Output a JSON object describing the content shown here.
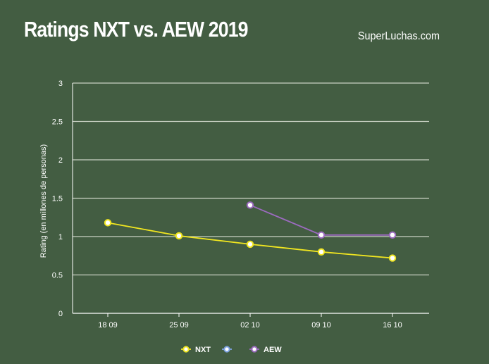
{
  "header": {
    "title": "Ratings NXT vs. AEW 2019",
    "source": "SuperLuchas.com"
  },
  "chart_data": {
    "type": "line",
    "title": "Ratings NXT vs. AEW 2019",
    "xlabel": "",
    "ylabel": "Rating (en millones de personas)",
    "categories": [
      "18 09",
      "25 09",
      "02 10",
      "09 10",
      "16 10"
    ],
    "ylim": [
      0,
      3
    ],
    "yticks": [
      "0",
      "0.5",
      "1",
      "1.5",
      "2",
      "2.5",
      "3"
    ],
    "grid": true,
    "legend_position": "bottom",
    "series": [
      {
        "name": "NXT",
        "color": "#f1e620",
        "values": [
          1.18,
          1.01,
          0.9,
          0.8,
          0.72
        ]
      },
      {
        "name": "",
        "color": "#7ea3e2",
        "values": [
          null,
          null,
          null,
          null,
          null
        ]
      },
      {
        "name": "AEW",
        "color": "#9c6bc0",
        "values": [
          null,
          null,
          1.41,
          1.02,
          1.02
        ]
      }
    ],
    "colors": {
      "background": "#435d42",
      "grid": "#c9d1c4",
      "axis": "#ffffff"
    }
  }
}
